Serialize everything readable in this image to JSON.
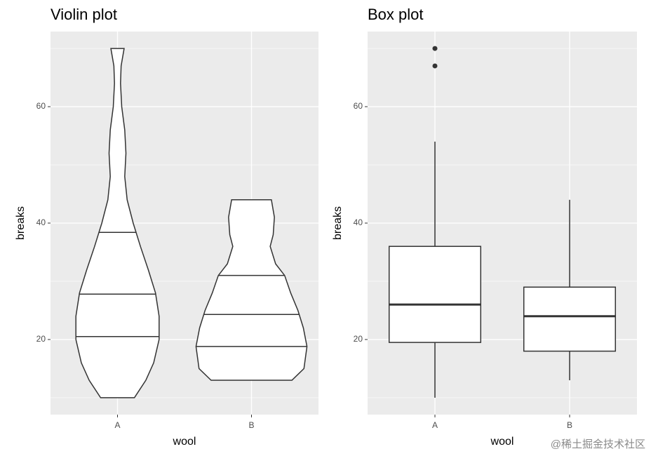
{
  "chart_data": [
    {
      "type": "violin",
      "title": "Violin plot",
      "xlabel": "wool",
      "ylabel": "breaks",
      "categories": [
        "A",
        "B"
      ],
      "ylim": [
        7.1,
        72.9
      ],
      "yticks": [
        20,
        40,
        60
      ],
      "y_minor_grid": [
        10,
        30,
        50,
        70
      ],
      "grid": true,
      "color": "#333333",
      "fill": "#ffffff",
      "violins": [
        {
          "y": [
            10,
            13,
            16,
            20,
            24,
            28,
            32,
            36,
            40,
            44,
            48,
            52,
            56,
            60,
            64,
            67,
            70
          ],
          "width": [
            0.28,
            0.47,
            0.6,
            0.69,
            0.69,
            0.63,
            0.51,
            0.38,
            0.26,
            0.16,
            0.12,
            0.14,
            0.12,
            0.07,
            0.05,
            0.06,
            0.11
          ],
          "quantiles": [
            20.5,
            27.8,
            38.4
          ]
        },
        {
          "y": [
            13,
            15,
            18.8,
            22,
            25,
            28,
            31,
            33,
            36,
            38,
            41,
            44
          ],
          "width": [
            0.67,
            0.87,
            0.92,
            0.86,
            0.77,
            0.65,
            0.55,
            0.4,
            0.31,
            0.36,
            0.38,
            0.33
          ],
          "quantiles": [
            18.8,
            24.3,
            31
          ]
        }
      ]
    },
    {
      "type": "box",
      "title": "Box plot",
      "xlabel": "wool",
      "ylabel": "breaks",
      "categories": [
        "A",
        "B"
      ],
      "ylim": [
        7.1,
        72.9
      ],
      "yticks": [
        20,
        40,
        60
      ],
      "y_minor_grid": [
        10,
        30,
        50,
        70
      ],
      "grid": true,
      "color": "#333333",
      "fill": "#ffffff",
      "boxes": [
        {
          "whisker_low": 10,
          "q1": 19.5,
          "median": 26,
          "q3": 36,
          "whisker_high": 54,
          "outliers": [
            67,
            70
          ]
        },
        {
          "whisker_low": 13,
          "q1": 18,
          "median": 24,
          "q3": 29,
          "whisker_high": 44,
          "outliers": []
        }
      ]
    }
  ],
  "watermark": "@稀土掘金技术社区"
}
